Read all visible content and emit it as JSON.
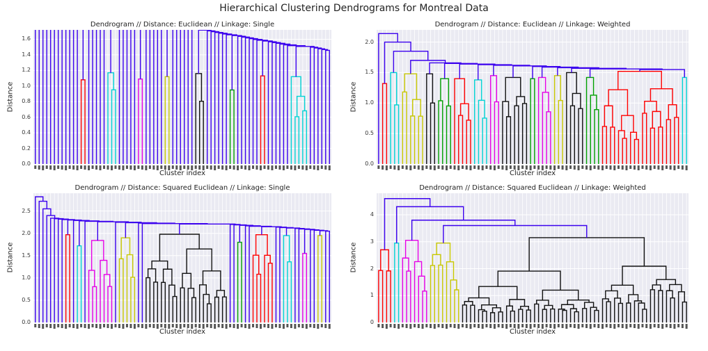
{
  "suptitle": "Hierarchical Clustering Dendrograms for Montreal Data",
  "colors": {
    "above": "#3b00ee",
    "red": "#ff0000",
    "cyan": "#00d4d4",
    "magenta": "#e600e6",
    "yellow": "#c8c800",
    "black": "#111111",
    "green": "#00a000",
    "background": "#eaeaf2"
  },
  "chart_data": [
    {
      "type": "dendrogram",
      "title": "Dendrogram // Distance: Euclidean // Linkage: Single",
      "xlabel": "Cluster index",
      "ylabel": "Distance",
      "ylim": [
        0,
        1.72
      ],
      "yticks": [
        "0.0",
        "0.2",
        "0.4",
        "0.6",
        "0.8",
        "1.0",
        "1.2",
        "1.4",
        "1.6"
      ],
      "ytick_values": [
        0,
        0.2,
        0.4,
        0.6,
        0.8,
        1.0,
        1.2,
        1.4,
        1.6
      ],
      "leaves": 78,
      "above_threshold_height": 1.46,
      "top_merge": 1.68,
      "chain_heights": [
        1.68,
        1.62,
        1.57,
        1.55,
        1.52,
        1.5,
        1.47
      ],
      "clusters": [
        {
          "color": "red",
          "height": 1.08,
          "leaves": 2
        },
        {
          "color": "cyan",
          "height": 1.17,
          "leaves": 3
        },
        {
          "color": "magenta",
          "height": 1.09,
          "leaves": 2
        },
        {
          "color": "yellow",
          "height": 1.12,
          "leaves": 2
        },
        {
          "color": "black",
          "height": 1.16,
          "leaves": 3
        },
        {
          "color": "green",
          "height": 0.95,
          "leaves": 2
        },
        {
          "color": "red",
          "height": 1.13,
          "leaves": 2
        },
        {
          "color": "cyan",
          "height": 1.12,
          "leaves": 5
        }
      ]
    },
    {
      "type": "dendrogram",
      "title": "Dendrogram // Distance: Euclidean // Linkage: Weighted",
      "xlabel": "Cluster index",
      "ylabel": "Distance",
      "ylim": [
        0,
        2.2
      ],
      "yticks": [
        "0.0",
        "0.5",
        "1.0",
        "1.5",
        "2.0"
      ],
      "ytick_values": [
        0,
        0.5,
        1.0,
        1.5,
        2.0
      ],
      "leaves": 78,
      "above_threshold_height": 1.55,
      "top_merge": 2.14,
      "chain_heights": [
        2.14,
        2.0,
        1.85,
        1.7,
        1.6
      ],
      "clusters": [
        {
          "color": "red",
          "height": 1.32,
          "leaves": 2
        },
        {
          "color": "cyan",
          "height": 1.5,
          "leaves": 3
        },
        {
          "color": "yellow",
          "height": 1.48,
          "leaves": 6
        },
        {
          "color": "black",
          "height": 1.48,
          "leaves": 3
        },
        {
          "color": "green",
          "height": 1.4,
          "leaves": 4
        },
        {
          "color": "red",
          "height": 1.4,
          "leaves": 5
        },
        {
          "color": "cyan",
          "height": 1.38,
          "leaves": 4
        },
        {
          "color": "magenta",
          "height": 1.45,
          "leaves": 3
        },
        {
          "color": "black",
          "height": 1.42,
          "leaves": 7
        },
        {
          "color": "green",
          "height": 1.4,
          "leaves": 2
        },
        {
          "color": "magenta",
          "height": 1.42,
          "leaves": 4
        },
        {
          "color": "yellow",
          "height": 1.45,
          "leaves": 3
        },
        {
          "color": "black",
          "height": 1.5,
          "leaves": 5
        },
        {
          "color": "green",
          "height": 1.42,
          "leaves": 4
        },
        {
          "color": "red",
          "height": 1.52,
          "leaves": 20
        },
        {
          "color": "cyan",
          "height": 1.42,
          "leaves": 2
        }
      ]
    },
    {
      "type": "dendrogram",
      "title": "Dendrogram // Distance: Squared Euclidean // Linkage: Single",
      "xlabel": "Cluster index",
      "ylabel": "Distance",
      "ylim": [
        0,
        2.9
      ],
      "yticks": [
        "0.0",
        "0.5",
        "1.0",
        "1.5",
        "2.0",
        "2.5"
      ],
      "ytick_values": [
        0,
        0.5,
        1.0,
        1.5,
        2.0,
        2.5
      ],
      "leaves": 78,
      "above_threshold_height": 2.05,
      "top_merge": 2.82,
      "chain_heights": [
        2.82,
        2.72,
        2.55,
        2.4,
        2.3,
        2.22,
        2.15
      ],
      "clusters": [
        {
          "color": "red",
          "height": 1.97,
          "leaves": 2
        },
        {
          "color": "cyan",
          "height": 1.72,
          "leaves": 2
        },
        {
          "color": "magenta",
          "height": 1.84,
          "leaves": 7
        },
        {
          "color": "yellow",
          "height": 1.9,
          "leaves": 5
        },
        {
          "color": "black",
          "height": 1.98,
          "leaves": 22
        },
        {
          "color": "green",
          "height": 1.8,
          "leaves": 2
        },
        {
          "color": "red",
          "height": 1.97,
          "leaves": 6
        },
        {
          "color": "cyan",
          "height": 1.95,
          "leaves": 3
        },
        {
          "color": "magenta",
          "height": 1.55,
          "leaves": 2
        },
        {
          "color": "yellow",
          "height": 1.95,
          "leaves": 2
        }
      ]
    },
    {
      "type": "dendrogram",
      "title": "Dendrogram // Distance: Squared Euclidean // Linkage: Weighted",
      "xlabel": "Cluster index",
      "ylabel": "Distance",
      "ylim": [
        0,
        4.8
      ],
      "yticks": [
        "0",
        "1",
        "2",
        "3",
        "4"
      ],
      "ytick_values": [
        0,
        1,
        2,
        3,
        4
      ],
      "leaves": 78,
      "above_threshold_height": 3.6,
      "top_merge": 4.6,
      "chain_heights": [
        4.6,
        4.3,
        3.8,
        3.6
      ],
      "clusters": [
        {
          "color": "red",
          "height": 2.7,
          "leaves": 4
        },
        {
          "color": "cyan",
          "height": 2.95,
          "leaves": 2
        },
        {
          "color": "magenta",
          "height": 3.05,
          "leaves": 7
        },
        {
          "color": "yellow",
          "height": 2.95,
          "leaves": 8
        },
        {
          "color": "black",
          "height": 3.15,
          "leaves": 57
        }
      ]
    }
  ]
}
